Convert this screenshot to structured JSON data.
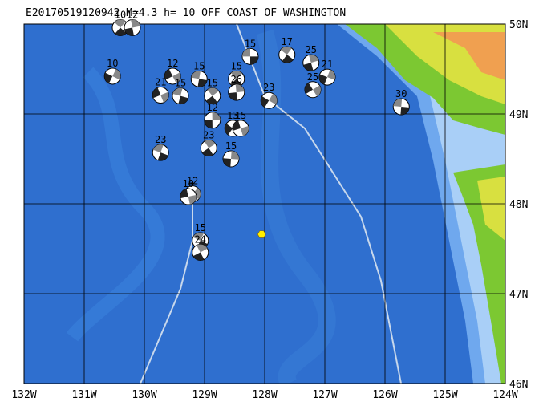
{
  "map": {
    "title": "E20170519120942 M=4.3 h= 10 OFF COAST OF WASHINGTON",
    "xlim": [
      -132,
      -124
    ],
    "ylim": [
      46,
      50
    ],
    "xticks": [
      {
        "value": -132,
        "label": "132W"
      },
      {
        "value": -131,
        "label": "131W"
      },
      {
        "value": -130,
        "label": "130W"
      },
      {
        "value": -129,
        "label": "129W"
      },
      {
        "value": -128,
        "label": "128W"
      },
      {
        "value": -127,
        "label": "127W"
      },
      {
        "value": -126,
        "label": "126W"
      },
      {
        "value": -125,
        "label": "125W"
      },
      {
        "value": -124,
        "label": "124W"
      }
    ],
    "yticks": [
      {
        "value": 50,
        "label": "50N"
      },
      {
        "value": 49,
        "label": "49N"
      },
      {
        "value": 48,
        "label": "48N"
      },
      {
        "value": 47,
        "label": "47N"
      },
      {
        "value": 46,
        "label": "46N"
      }
    ],
    "epicenter": {
      "lon": -128.05,
      "lat": 47.66,
      "color": "#ffee00"
    },
    "events": [
      {
        "lon": -128.24,
        "lat": 49.64,
        "label": "15"
      },
      {
        "lon": -127.63,
        "lat": 49.66,
        "label": "17"
      },
      {
        "lon": -127.23,
        "lat": 49.57,
        "label": "25"
      },
      {
        "lon": -126.96,
        "lat": 49.41,
        "label": "21"
      },
      {
        "lon": -127.2,
        "lat": 49.27,
        "label": "25"
      },
      {
        "lon": -125.73,
        "lat": 49.08,
        "label": "30"
      },
      {
        "lon": -130.4,
        "lat": 49.96,
        "label": "10"
      },
      {
        "lon": -130.2,
        "lat": 49.96,
        "label": "12"
      },
      {
        "lon": -130.53,
        "lat": 49.42,
        "label": "10"
      },
      {
        "lon": -129.53,
        "lat": 49.42,
        "label": "12"
      },
      {
        "lon": -129.09,
        "lat": 49.39,
        "label": "15"
      },
      {
        "lon": -128.47,
        "lat": 49.39,
        "label": "15"
      },
      {
        "lon": -128.47,
        "lat": 49.24,
        "label": "26"
      },
      {
        "lon": -127.93,
        "lat": 49.15,
        "label": "23"
      },
      {
        "lon": -129.73,
        "lat": 49.21,
        "label": "21"
      },
      {
        "lon": -129.4,
        "lat": 49.2,
        "label": "15"
      },
      {
        "lon": -128.87,
        "lat": 49.2,
        "label": "15"
      },
      {
        "lon": -128.87,
        "lat": 48.93,
        "label": "12"
      },
      {
        "lon": -128.53,
        "lat": 48.84,
        "label": "13"
      },
      {
        "lon": -128.4,
        "lat": 48.84,
        "label": "15"
      },
      {
        "lon": -129.73,
        "lat": 48.57,
        "label": "23"
      },
      {
        "lon": -128.93,
        "lat": 48.62,
        "label": "23"
      },
      {
        "lon": -128.56,
        "lat": 48.5,
        "label": "15"
      },
      {
        "lon": -129.2,
        "lat": 48.11,
        "label": "12"
      },
      {
        "lon": -129.27,
        "lat": 48.08,
        "label": "10"
      },
      {
        "lon": -129.07,
        "lat": 47.59,
        "label": "15"
      },
      {
        "lon": -129.07,
        "lat": 47.46,
        "label": "24"
      }
    ]
  }
}
